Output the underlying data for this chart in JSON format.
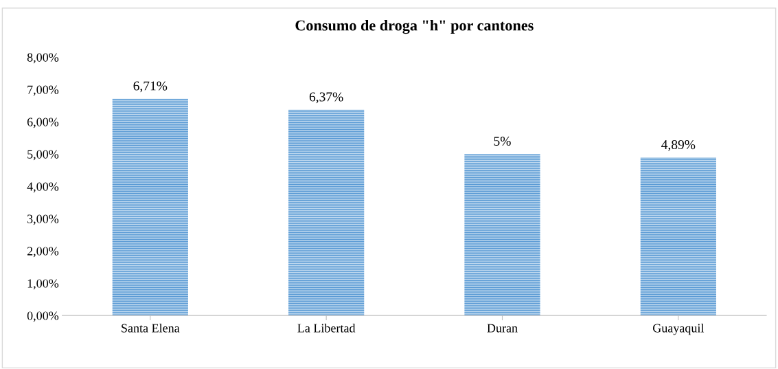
{
  "chart_data": {
    "type": "bar",
    "title": "Consumo de droga \"h\" por cantones",
    "categories": [
      "Santa Elena",
      "La Libertad",
      "Duran",
      "Guayaquil"
    ],
    "values": [
      6.71,
      6.37,
      5,
      4.89
    ],
    "value_labels": [
      "6,71%",
      "6,37%",
      "5%",
      "4,89%"
    ],
    "color": "#5b9bd5",
    "ylim": [
      0,
      8
    ],
    "yticks": [
      {
        "value": 0,
        "label": "0,00%"
      },
      {
        "value": 1,
        "label": "1,00%"
      },
      {
        "value": 2,
        "label": "2,00%"
      },
      {
        "value": 3,
        "label": "3,00%"
      },
      {
        "value": 4,
        "label": "4,00%"
      },
      {
        "value": 5,
        "label": "5,00%"
      },
      {
        "value": 6,
        "label": "6,00%"
      },
      {
        "value": 7,
        "label": "7,00%"
      },
      {
        "value": 8,
        "label": "8,00%"
      }
    ],
    "grid": false
  }
}
